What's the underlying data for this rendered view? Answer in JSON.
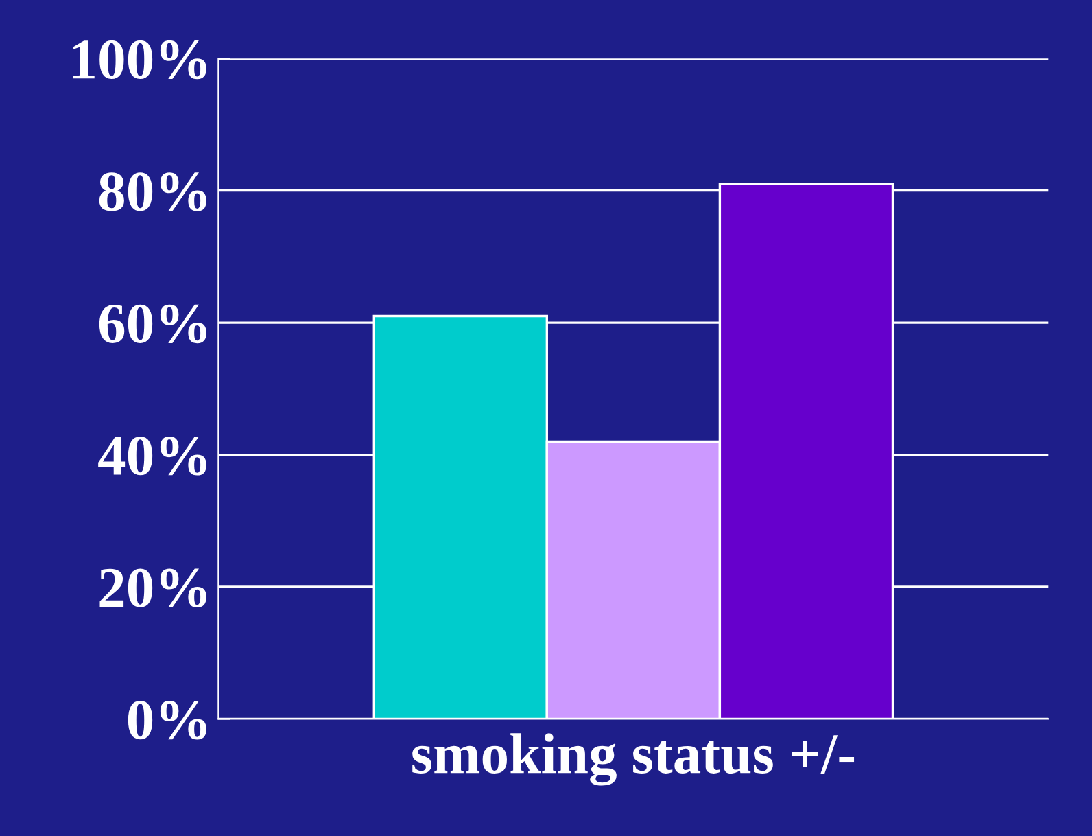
{
  "chart_data": {
    "type": "bar",
    "xlabel": "smoking status +/-",
    "categories": [
      null,
      null,
      null
    ],
    "values": [
      61,
      42,
      81
    ],
    "colors": [
      "#00cccc",
      "#cc99ff",
      "#6600cc"
    ],
    "ylim": [
      0,
      100
    ],
    "yticks": [
      {
        "value": 0,
        "label": "0%"
      },
      {
        "value": 20,
        "label": "20%"
      },
      {
        "value": 40,
        "label": "40%"
      },
      {
        "value": 60,
        "label": "60%"
      },
      {
        "value": 80,
        "label": "80%"
      },
      {
        "value": 100,
        "label": "100%"
      }
    ],
    "grid": "y"
  }
}
